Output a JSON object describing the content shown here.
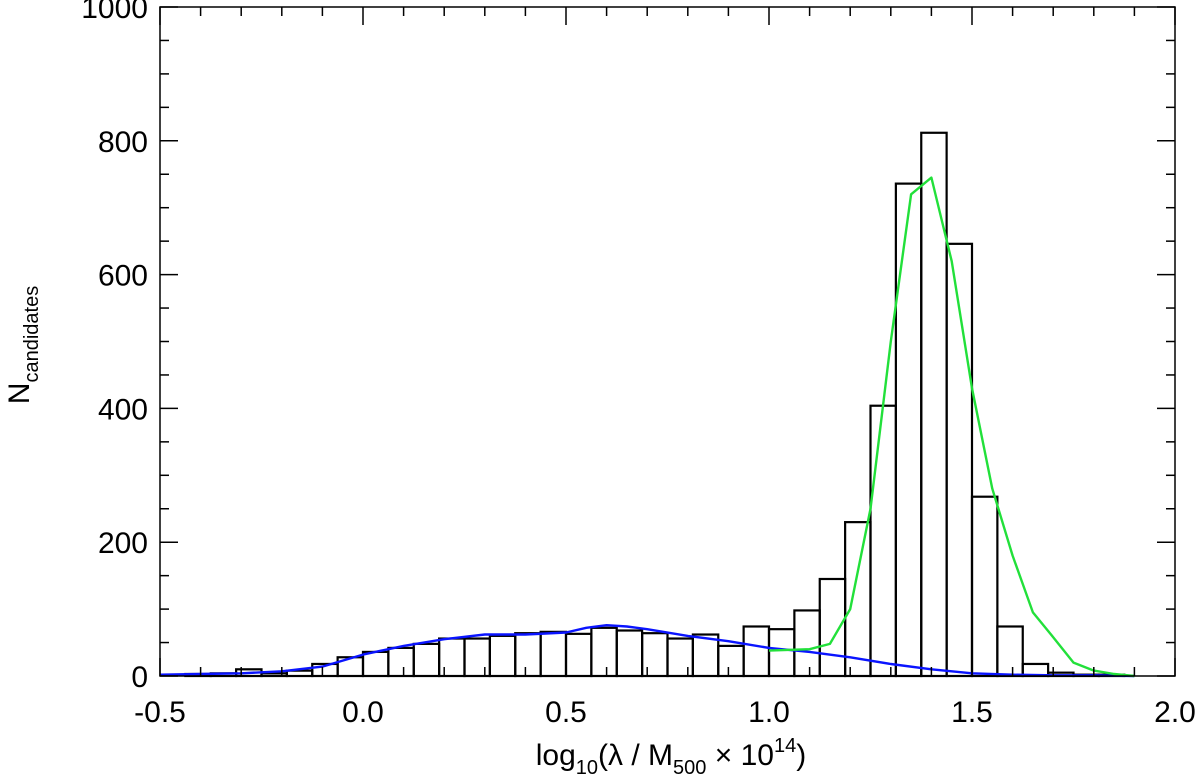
{
  "chart_data": {
    "type": "bar",
    "xlabel_parts": {
      "pre": "log",
      "sub": "10",
      "mid": "(λ / M",
      "sub2": "500",
      "mid2": " × 10",
      "sup": "14",
      "post": ")"
    },
    "ylabel_parts": {
      "main": "N",
      "sub": "candidates"
    },
    "xlim": [
      -0.5,
      2.0
    ],
    "ylim": [
      0,
      1000
    ],
    "xticks": [
      -0.5,
      0.0,
      0.5,
      1.0,
      1.5,
      2.0
    ],
    "xtick_labels": [
      "-0.5",
      "0.0",
      "0.5",
      "1.0",
      "1.5",
      "2.0"
    ],
    "yticks": [
      0,
      200,
      400,
      600,
      800,
      1000
    ],
    "ytick_labels": [
      "0",
      "200",
      "400",
      "600",
      "800",
      "1000"
    ],
    "bin_width": 0.0625,
    "histogram": {
      "bin_left_edges": [
        -0.4375,
        -0.375,
        -0.3125,
        -0.25,
        -0.1875,
        -0.125,
        -0.0625,
        0.0,
        0.0625,
        0.125,
        0.1875,
        0.25,
        0.3125,
        0.375,
        0.4375,
        0.5,
        0.5625,
        0.625,
        0.6875,
        0.75,
        0.8125,
        0.875,
        0.9375,
        1.0,
        1.0625,
        1.125,
        1.1875,
        1.25,
        1.3125,
        1.375,
        1.4375,
        1.5,
        1.5625,
        1.625,
        1.6875,
        1.75,
        1.8125,
        1.875
      ],
      "counts": [
        3,
        4,
        10,
        4,
        8,
        18,
        28,
        36,
        42,
        48,
        56,
        56,
        60,
        64,
        66,
        63,
        72,
        68,
        64,
        56,
        62,
        45,
        74,
        70,
        98,
        145,
        230,
        404,
        736,
        812,
        646,
        268,
        74,
        18,
        5,
        2,
        2,
        0
      ]
    },
    "series": [
      {
        "color": "#0a14ff",
        "x": [
          -0.5,
          -0.4,
          -0.3,
          -0.2,
          -0.1,
          0.0,
          0.1,
          0.2,
          0.3,
          0.4,
          0.5,
          0.55,
          0.6,
          0.65,
          0.7,
          0.8,
          0.9,
          1.0,
          1.1,
          1.2,
          1.3,
          1.4,
          1.5,
          1.6,
          1.7,
          1.8,
          1.9
        ],
        "y": [
          2,
          3,
          4,
          7,
          14,
          32,
          45,
          55,
          62,
          62,
          65,
          72,
          76,
          74,
          70,
          60,
          52,
          42,
          36,
          28,
          18,
          10,
          4,
          2,
          1,
          1,
          0
        ]
      },
      {
        "color": "#22e03a",
        "x": [
          1.0,
          1.1,
          1.15,
          1.2,
          1.25,
          1.3,
          1.35,
          1.4,
          1.45,
          1.5,
          1.55,
          1.6,
          1.65,
          1.7,
          1.75,
          1.8,
          1.85,
          1.9
        ],
        "y": [
          38,
          40,
          48,
          100,
          250,
          500,
          720,
          745,
          620,
          430,
          280,
          180,
          95,
          58,
          20,
          8,
          3,
          0
        ]
      }
    ],
    "colors": {
      "histogram": "#000000",
      "axes": "#000000"
    },
    "grid": false,
    "legend": "none"
  }
}
